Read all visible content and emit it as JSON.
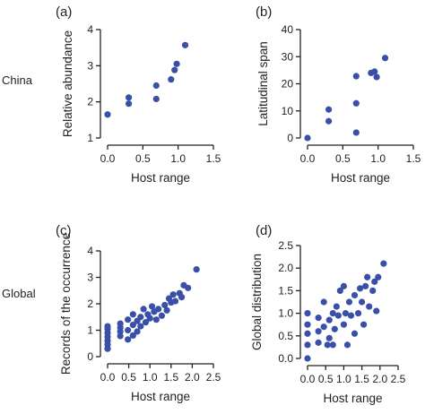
{
  "row_labels": [
    "China",
    "Global"
  ],
  "point_color": "#3a50a8",
  "chart_data": [
    {
      "type": "scatter",
      "panel_label": "(a)",
      "xlabel": "Host range",
      "ylabel": "Relative abundance",
      "xlim": [
        0,
        1.5
      ],
      "ylim": [
        1,
        4
      ],
      "xticks": [
        "0.0",
        "0.5",
        "1.0",
        "1.5"
      ],
      "yticks": [
        "1",
        "2",
        "3",
        "4"
      ],
      "grid": false,
      "points": [
        {
          "x": 0.0,
          "y": 1.65
        },
        {
          "x": 0.3,
          "y": 2.12
        },
        {
          "x": 0.3,
          "y": 1.95
        },
        {
          "x": 0.69,
          "y": 2.45
        },
        {
          "x": 0.69,
          "y": 2.08
        },
        {
          "x": 0.9,
          "y": 2.62
        },
        {
          "x": 0.95,
          "y": 2.88
        },
        {
          "x": 0.98,
          "y": 3.05
        },
        {
          "x": 1.1,
          "y": 3.57
        }
      ]
    },
    {
      "type": "scatter",
      "panel_label": "(b)",
      "xlabel": "Host range",
      "ylabel": "Latitudinal span",
      "xlim": [
        0,
        1.5
      ],
      "ylim": [
        0,
        40
      ],
      "xticks": [
        "0.0",
        "0.5",
        "1.0",
        "1.5"
      ],
      "yticks": [
        "0",
        "10",
        "20",
        "30",
        "40"
      ],
      "grid": false,
      "points": [
        {
          "x": 0.0,
          "y": 0.0
        },
        {
          "x": 0.3,
          "y": 10.5
        },
        {
          "x": 0.3,
          "y": 6.2
        },
        {
          "x": 0.69,
          "y": 22.8
        },
        {
          "x": 0.69,
          "y": 12.8
        },
        {
          "x": 0.69,
          "y": 2.0
        },
        {
          "x": 0.9,
          "y": 24.0
        },
        {
          "x": 0.95,
          "y": 24.5
        },
        {
          "x": 0.98,
          "y": 22.5
        },
        {
          "x": 1.1,
          "y": 29.5
        }
      ]
    },
    {
      "type": "scatter",
      "panel_label": "(c)",
      "xlabel": "Host range",
      "ylabel": "Records of the occurrence",
      "xlim": [
        0,
        2.5
      ],
      "ylim": [
        0,
        4
      ],
      "xticks": [
        "0.0",
        "0.5",
        "1.0",
        "1.5",
        "2.0",
        "2.5"
      ],
      "yticks": [
        "0",
        "1",
        "2",
        "3",
        "4"
      ],
      "grid": false,
      "points": [
        {
          "x": 0.0,
          "y": 0.3
        },
        {
          "x": 0.0,
          "y": 0.45
        },
        {
          "x": 0.0,
          "y": 0.6
        },
        {
          "x": 0.0,
          "y": 0.75
        },
        {
          "x": 0.0,
          "y": 0.9
        },
        {
          "x": 0.0,
          "y": 1.05
        },
        {
          "x": 0.0,
          "y": 1.15
        },
        {
          "x": 0.3,
          "y": 0.78
        },
        {
          "x": 0.3,
          "y": 0.95
        },
        {
          "x": 0.3,
          "y": 1.1
        },
        {
          "x": 0.3,
          "y": 1.25
        },
        {
          "x": 0.48,
          "y": 0.65
        },
        {
          "x": 0.48,
          "y": 1.0
        },
        {
          "x": 0.48,
          "y": 1.4
        },
        {
          "x": 0.6,
          "y": 0.8
        },
        {
          "x": 0.6,
          "y": 1.2
        },
        {
          "x": 0.6,
          "y": 1.6
        },
        {
          "x": 0.7,
          "y": 0.95
        },
        {
          "x": 0.7,
          "y": 1.35
        },
        {
          "x": 0.78,
          "y": 1.15
        },
        {
          "x": 0.78,
          "y": 1.5
        },
        {
          "x": 0.85,
          "y": 1.8
        },
        {
          "x": 0.9,
          "y": 1.3
        },
        {
          "x": 0.95,
          "y": 1.6
        },
        {
          "x": 1.0,
          "y": 1.45
        },
        {
          "x": 1.05,
          "y": 1.9
        },
        {
          "x": 1.1,
          "y": 1.7
        },
        {
          "x": 1.15,
          "y": 1.4
        },
        {
          "x": 1.2,
          "y": 1.8
        },
        {
          "x": 1.28,
          "y": 1.55
        },
        {
          "x": 1.35,
          "y": 1.95
        },
        {
          "x": 1.4,
          "y": 1.75
        },
        {
          "x": 1.45,
          "y": 2.2
        },
        {
          "x": 1.5,
          "y": 2.05
        },
        {
          "x": 1.55,
          "y": 2.35
        },
        {
          "x": 1.6,
          "y": 2.1
        },
        {
          "x": 1.7,
          "y": 2.4
        },
        {
          "x": 1.75,
          "y": 2.25
        },
        {
          "x": 1.8,
          "y": 2.7
        },
        {
          "x": 1.9,
          "y": 2.6
        },
        {
          "x": 2.1,
          "y": 3.3
        }
      ]
    },
    {
      "type": "scatter",
      "panel_label": "(d)",
      "xlabel": "Host range",
      "ylabel": "Global distribution",
      "xlim": [
        0,
        2.5
      ],
      "ylim": [
        0,
        2.5
      ],
      "xticks": [
        "0.0",
        "0.5",
        "1.0",
        "1.5",
        "2.0",
        "2.5"
      ],
      "yticks": [
        "0.0",
        "0.5",
        "1.0",
        "1.5",
        "2.0",
        "2.5"
      ],
      "grid": false,
      "points": [
        {
          "x": 0.0,
          "y": 0.0
        },
        {
          "x": 0.0,
          "y": 0.3
        },
        {
          "x": 0.0,
          "y": 0.55
        },
        {
          "x": 0.0,
          "y": 0.75
        },
        {
          "x": 0.0,
          "y": 1.0
        },
        {
          "x": 0.3,
          "y": 0.35
        },
        {
          "x": 0.3,
          "y": 0.6
        },
        {
          "x": 0.3,
          "y": 0.9
        },
        {
          "x": 0.45,
          "y": 0.7
        },
        {
          "x": 0.45,
          "y": 1.25
        },
        {
          "x": 0.55,
          "y": 0.3
        },
        {
          "x": 0.6,
          "y": 0.45
        },
        {
          "x": 0.6,
          "y": 0.85
        },
        {
          "x": 0.7,
          "y": 0.3
        },
        {
          "x": 0.7,
          "y": 1.0
        },
        {
          "x": 0.75,
          "y": 0.65
        },
        {
          "x": 0.8,
          "y": 1.15
        },
        {
          "x": 0.85,
          "y": 0.95
        },
        {
          "x": 0.9,
          "y": 1.5
        },
        {
          "x": 1.0,
          "y": 1.6
        },
        {
          "x": 1.0,
          "y": 0.75
        },
        {
          "x": 1.05,
          "y": 1.0
        },
        {
          "x": 1.1,
          "y": 0.3
        },
        {
          "x": 1.15,
          "y": 1.25
        },
        {
          "x": 1.2,
          "y": 0.95
        },
        {
          "x": 1.3,
          "y": 1.4
        },
        {
          "x": 1.3,
          "y": 0.55
        },
        {
          "x": 1.4,
          "y": 1.0
        },
        {
          "x": 1.45,
          "y": 1.55
        },
        {
          "x": 1.5,
          "y": 1.25
        },
        {
          "x": 1.55,
          "y": 0.75
        },
        {
          "x": 1.6,
          "y": 1.6
        },
        {
          "x": 1.65,
          "y": 1.8
        },
        {
          "x": 1.7,
          "y": 1.15
        },
        {
          "x": 1.8,
          "y": 1.5
        },
        {
          "x": 1.85,
          "y": 1.7
        },
        {
          "x": 1.9,
          "y": 1.05
        },
        {
          "x": 1.95,
          "y": 1.8
        },
        {
          "x": 2.1,
          "y": 2.1
        }
      ]
    }
  ]
}
